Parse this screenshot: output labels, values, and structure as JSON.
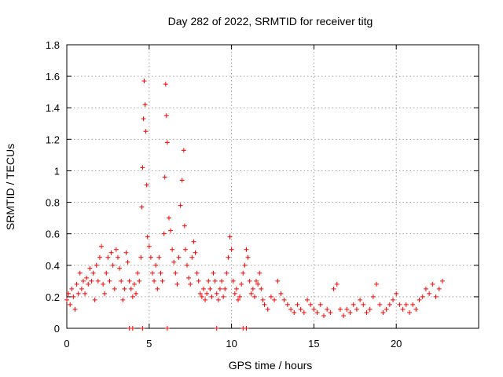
{
  "chart_data": {
    "type": "scatter",
    "title": "Day 282 of 2022, SRMTID for receiver titg",
    "xlabel": "GPS time / hours",
    "ylabel": "SRMTID / TECUs",
    "xlim": [
      0,
      25
    ],
    "ylim": [
      0,
      1.8
    ],
    "xticks": [
      0,
      5,
      10,
      15,
      20
    ],
    "xtick_labels": [
      "0",
      "5",
      "10",
      "15",
      "20"
    ],
    "yticks": [
      0,
      0.2,
      0.4,
      0.6,
      0.8,
      1.0,
      1.2,
      1.4,
      1.6,
      1.8
    ],
    "ytick_labels": [
      "0",
      "0.2",
      "0.4",
      "0.6",
      "0.8",
      "1",
      "1.2",
      "1.4",
      "1.6",
      "1.8"
    ],
    "grid": true,
    "marker": "+",
    "color": "#ff0000",
    "series": [
      {
        "name": "SRMTID",
        "points": [
          [
            0.0,
            0.18
          ],
          [
            0.1,
            0.22
          ],
          [
            0.2,
            0.15
          ],
          [
            0.3,
            0.25
          ],
          [
            0.4,
            0.2
          ],
          [
            0.5,
            0.12
          ],
          [
            0.6,
            0.28
          ],
          [
            0.7,
            0.22
          ],
          [
            0.8,
            0.35
          ],
          [
            0.9,
            0.25
          ],
          [
            1.0,
            0.3
          ],
          [
            1.1,
            0.22
          ],
          [
            1.2,
            0.32
          ],
          [
            1.3,
            0.28
          ],
          [
            1.4,
            0.38
          ],
          [
            1.5,
            0.3
          ],
          [
            1.6,
            0.35
          ],
          [
            1.7,
            0.18
          ],
          [
            1.8,
            0.4
          ],
          [
            1.9,
            0.3
          ],
          [
            2.0,
            0.45
          ],
          [
            2.1,
            0.52
          ],
          [
            2.2,
            0.28
          ],
          [
            2.3,
            0.22
          ],
          [
            2.4,
            0.35
          ],
          [
            2.5,
            0.45
          ],
          [
            2.6,
            0.3
          ],
          [
            2.7,
            0.48
          ],
          [
            2.8,
            0.4
          ],
          [
            2.9,
            0.25
          ],
          [
            3.0,
            0.5
          ],
          [
            3.1,
            0.45
          ],
          [
            3.2,
            0.38
          ],
          [
            3.3,
            0.3
          ],
          [
            3.4,
            0.18
          ],
          [
            3.5,
            0.25
          ],
          [
            3.6,
            0.48
          ],
          [
            3.7,
            0.42
          ],
          [
            3.8,
            0.3
          ],
          [
            3.9,
            0.25
          ],
          [
            4.0,
            0.2
          ],
          [
            4.1,
            0.28
          ],
          [
            4.2,
            0.22
          ],
          [
            4.3,
            0.35
          ],
          [
            4.4,
            0.3
          ],
          [
            4.5,
            0.45
          ],
          [
            4.55,
            0.77
          ],
          [
            4.6,
            1.02
          ],
          [
            4.65,
            1.33
          ],
          [
            4.7,
            1.57
          ],
          [
            4.75,
            1.42
          ],
          [
            4.8,
            1.25
          ],
          [
            4.85,
            0.91
          ],
          [
            4.9,
            0.58
          ],
          [
            5.0,
            0.52
          ],
          [
            5.1,
            0.45
          ],
          [
            5.2,
            0.35
          ],
          [
            5.3,
            0.3
          ],
          [
            5.4,
            0.4
          ],
          [
            5.5,
            0.25
          ],
          [
            5.6,
            0.45
          ],
          [
            5.7,
            0.35
          ],
          [
            5.8,
            0.3
          ],
          [
            5.9,
            0.6
          ],
          [
            5.95,
            0.96
          ],
          [
            6.0,
            1.55
          ],
          [
            6.05,
            1.35
          ],
          [
            6.1,
            1.18
          ],
          [
            6.2,
            0.7
          ],
          [
            6.3,
            0.62
          ],
          [
            6.4,
            0.5
          ],
          [
            6.5,
            0.42
          ],
          [
            6.6,
            0.35
          ],
          [
            6.7,
            0.28
          ],
          [
            6.8,
            0.45
          ],
          [
            6.9,
            0.78
          ],
          [
            7.0,
            0.94
          ],
          [
            7.1,
            1.13
          ],
          [
            7.15,
            0.65
          ],
          [
            7.2,
            0.5
          ],
          [
            7.3,
            0.4
          ],
          [
            7.4,
            0.32
          ],
          [
            7.5,
            0.28
          ],
          [
            7.6,
            0.45
          ],
          [
            7.7,
            0.55
          ],
          [
            7.8,
            0.48
          ],
          [
            7.9,
            0.35
          ],
          [
            8.0,
            0.3
          ],
          [
            8.1,
            0.22
          ],
          [
            8.2,
            0.2
          ],
          [
            8.3,
            0.25
          ],
          [
            8.4,
            0.18
          ],
          [
            8.5,
            0.22
          ],
          [
            8.6,
            0.3
          ],
          [
            8.7,
            0.25
          ],
          [
            8.8,
            0.2
          ],
          [
            8.9,
            0.35
          ],
          [
            9.0,
            0.3
          ],
          [
            9.1,
            0.22
          ],
          [
            9.2,
            0.18
          ],
          [
            9.3,
            0.25
          ],
          [
            9.4,
            0.3
          ],
          [
            9.5,
            0.2
          ],
          [
            9.6,
            0.25
          ],
          [
            9.7,
            0.35
          ],
          [
            9.8,
            0.45
          ],
          [
            9.9,
            0.58
          ],
          [
            10.0,
            0.5
          ],
          [
            10.1,
            0.3
          ],
          [
            10.2,
            0.22
          ],
          [
            10.3,
            0.25
          ],
          [
            10.4,
            0.18
          ],
          [
            10.5,
            0.2
          ],
          [
            10.6,
            0.28
          ],
          [
            10.7,
            0.35
          ],
          [
            10.8,
            0.4
          ],
          [
            10.9,
            0.5
          ],
          [
            11.0,
            0.45
          ],
          [
            11.1,
            0.3
          ],
          [
            11.2,
            0.22
          ],
          [
            11.3,
            0.25
          ],
          [
            11.4,
            0.2
          ],
          [
            11.5,
            0.3
          ],
          [
            11.6,
            0.28
          ],
          [
            11.7,
            0.35
          ],
          [
            11.8,
            0.25
          ],
          [
            11.9,
            0.18
          ],
          [
            12.0,
            0.15
          ],
          [
            12.2,
            0.12
          ],
          [
            12.4,
            0.2
          ],
          [
            12.6,
            0.18
          ],
          [
            12.8,
            0.3
          ],
          [
            13.0,
            0.22
          ],
          [
            13.2,
            0.18
          ],
          [
            13.4,
            0.15
          ],
          [
            13.6,
            0.12
          ],
          [
            13.8,
            0.1
          ],
          [
            14.0,
            0.15
          ],
          [
            14.2,
            0.12
          ],
          [
            14.4,
            0.1
          ],
          [
            14.6,
            0.18
          ],
          [
            14.8,
            0.15
          ],
          [
            15.0,
            0.12
          ],
          [
            15.2,
            0.1
          ],
          [
            15.4,
            0.15
          ],
          [
            15.6,
            0.08
          ],
          [
            15.8,
            0.12
          ],
          [
            16.0,
            0.1
          ],
          [
            16.2,
            0.25
          ],
          [
            16.4,
            0.28
          ],
          [
            16.6,
            0.12
          ],
          [
            16.8,
            0.08
          ],
          [
            17.0,
            0.12
          ],
          [
            17.2,
            0.1
          ],
          [
            17.4,
            0.15
          ],
          [
            17.6,
            0.12
          ],
          [
            17.8,
            0.18
          ],
          [
            18.0,
            0.15
          ],
          [
            18.2,
            0.1
          ],
          [
            18.4,
            0.12
          ],
          [
            18.6,
            0.2
          ],
          [
            18.8,
            0.28
          ],
          [
            19.0,
            0.15
          ],
          [
            19.2,
            0.1
          ],
          [
            19.4,
            0.12
          ],
          [
            19.6,
            0.15
          ],
          [
            19.8,
            0.18
          ],
          [
            20.0,
            0.22
          ],
          [
            20.2,
            0.15
          ],
          [
            20.4,
            0.12
          ],
          [
            20.6,
            0.15
          ],
          [
            20.8,
            0.1
          ],
          [
            21.0,
            0.15
          ],
          [
            21.2,
            0.12
          ],
          [
            21.4,
            0.18
          ],
          [
            21.6,
            0.2
          ],
          [
            21.8,
            0.25
          ],
          [
            22.0,
            0.22
          ],
          [
            22.2,
            0.28
          ],
          [
            22.4,
            0.2
          ],
          [
            22.6,
            0.25
          ],
          [
            22.8,
            0.3
          ],
          [
            3.8,
            0.0
          ],
          [
            4.0,
            0.0
          ],
          [
            4.6,
            0.0
          ],
          [
            6.1,
            0.0
          ],
          [
            9.1,
            0.0
          ],
          [
            10.7,
            0.0
          ],
          [
            10.9,
            0.0
          ]
        ]
      }
    ]
  }
}
